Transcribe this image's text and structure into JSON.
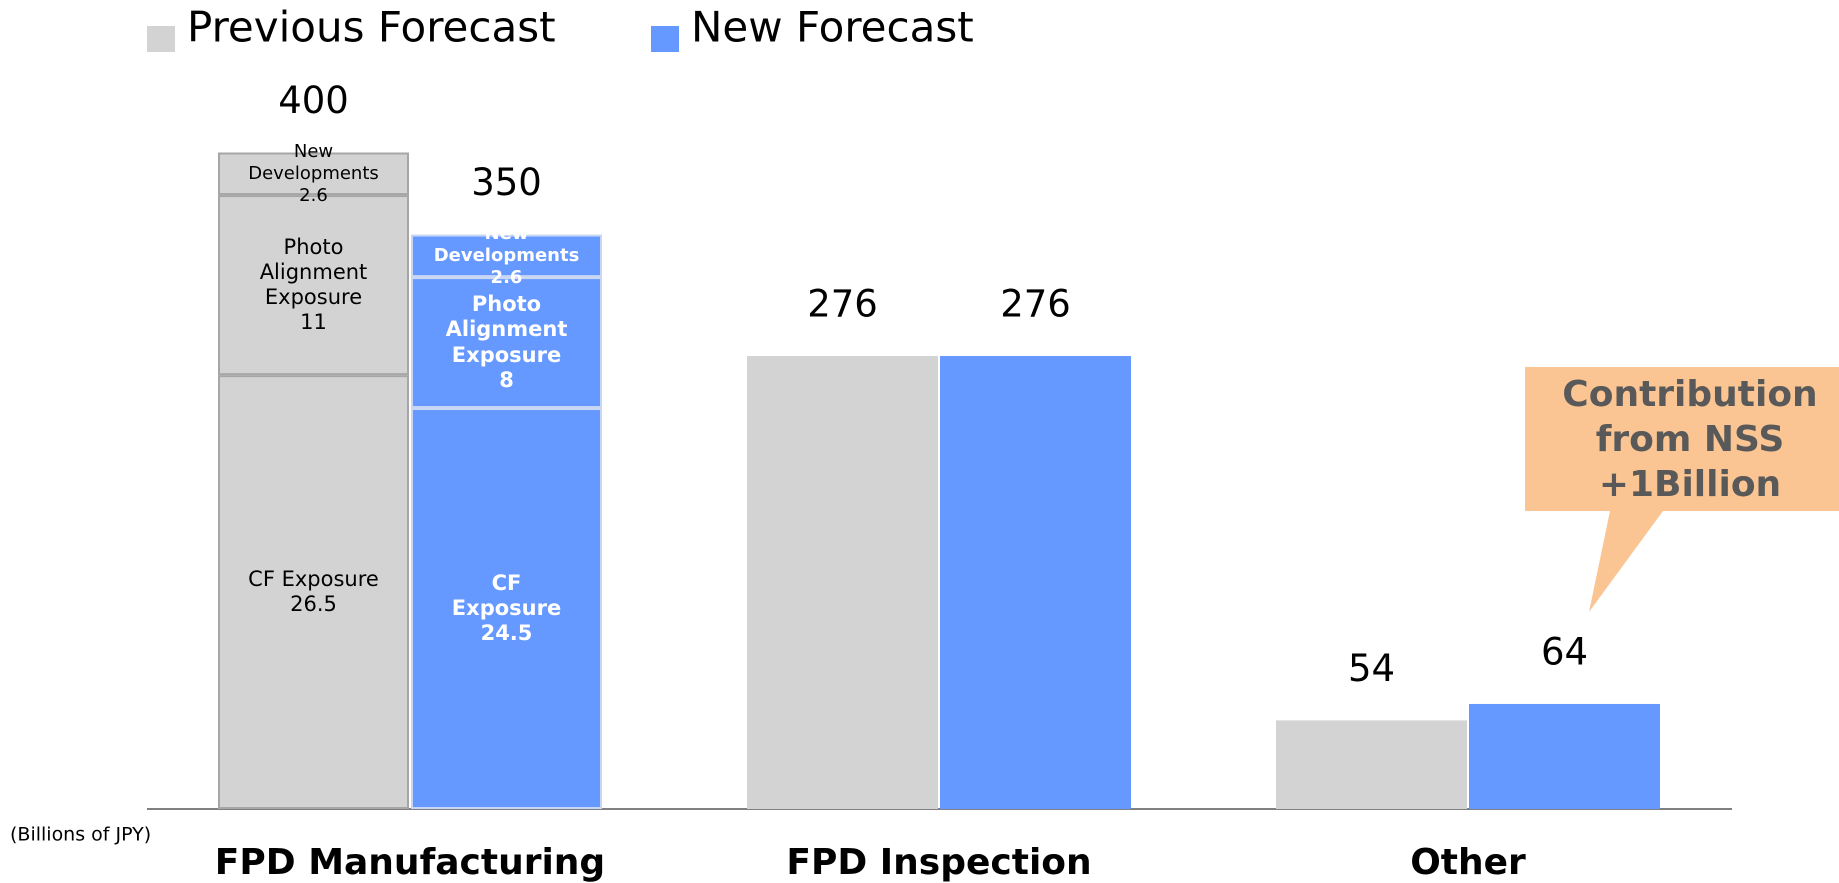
{
  "chart_data": {
    "type": "bar",
    "categories": [
      "FPD Manufacturing",
      "FPD Inspection",
      "Other"
    ],
    "series": [
      {
        "name": "Previous Forecast",
        "color": "#d3d3d3",
        "values": [
          400,
          276,
          54
        ]
      },
      {
        "name": "New Forecast",
        "color": "#6699ff",
        "values": [
          350,
          276,
          64
        ]
      }
    ],
    "segments": [
      {
        "name": "CF Exposure",
        "values": [
          26.5,
          24.5
        ]
      },
      {
        "name": "Photo Alignment Exposure",
        "values": [
          11,
          8
        ]
      },
      {
        "name": "New Developments",
        "values": [
          2.6,
          2.6
        ]
      }
    ],
    "unit_label": "(Billions of JPY)",
    "annotation": "Contribution from NSS +1Billion",
    "legend": "top-left"
  }
}
